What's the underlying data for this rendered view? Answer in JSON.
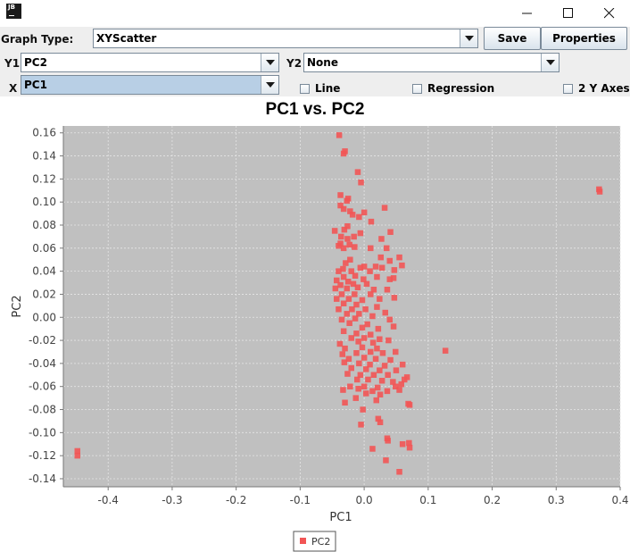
{
  "window": {
    "icon_text": "JB",
    "minimize_label": "minimize",
    "maximize_label": "maximize",
    "close_label": "close"
  },
  "controls": {
    "graph_type_label": "Graph Type:",
    "graph_type_value": "XYScatter",
    "save_label": "Save",
    "properties_label": "Properties",
    "y1_label": "Y1",
    "y1_value": "PC2",
    "y2_label": "Y2",
    "y2_value": "None",
    "x_label": "X",
    "x_value": "PC1",
    "line_label": "Line",
    "regression_label": "Regression",
    "two_y_axes_label": "2 Y Axes",
    "line_checked": false,
    "regression_checked": false,
    "two_y_axes_checked": false
  },
  "colors": {
    "plot_background": "#c0c0c0",
    "marker": "#f25555",
    "grid": "#e6e6e6"
  },
  "chart_data": {
    "type": "scatter",
    "title": "PC1 vs. PC2",
    "xlabel": "PC1",
    "ylabel": "PC2",
    "xlim": [
      -0.47,
      0.4
    ],
    "ylim": [
      -0.147,
      0.166
    ],
    "x_ticks": [
      -0.4,
      -0.3,
      -0.2,
      -0.1,
      0.0,
      0.1,
      0.2,
      0.3,
      0.4
    ],
    "x_tick_labels": [
      "-0.4",
      "-0.3",
      "-0.2",
      "-0.1",
      "0.0",
      "0.1",
      "0.2",
      "0.3",
      "0.4"
    ],
    "y_ticks": [
      0.16,
      0.14,
      0.12,
      0.1,
      0.08,
      0.06,
      0.04,
      0.02,
      0.0,
      -0.02,
      -0.04,
      -0.06,
      -0.08,
      -0.1,
      -0.12,
      -0.14
    ],
    "y_tick_labels": [
      "0.16",
      "0.14",
      "0.12",
      "0.10",
      "0.08",
      "0.06",
      "0.04",
      "0.02",
      "0.00",
      "-0.02",
      "-0.04",
      "-0.06",
      "-0.08",
      "-0.10",
      "-0.12",
      "-0.14"
    ],
    "grid": true,
    "legend_position": "bottom-center",
    "series": [
      {
        "name": "PC2",
        "color": "#f25555",
        "points": [
          [
            -0.448,
            -0.116
          ],
          [
            -0.448,
            -0.12
          ],
          [
            0.367,
            0.111
          ],
          [
            0.368,
            0.109
          ],
          [
            0.127,
            -0.029
          ],
          [
            -0.039,
            0.158
          ],
          [
            -0.03,
            0.144
          ],
          [
            -0.032,
            0.142
          ],
          [
            -0.01,
            0.126
          ],
          [
            -0.005,
            0.117
          ],
          [
            -0.037,
            0.106
          ],
          [
            -0.025,
            0.103
          ],
          [
            -0.027,
            0.101
          ],
          [
            -0.037,
            0.097
          ],
          [
            -0.032,
            0.094
          ],
          [
            -0.022,
            0.092
          ],
          [
            -0.018,
            0.089
          ],
          [
            -0.008,
            0.087
          ],
          [
            0.0,
            0.091
          ],
          [
            0.032,
            0.095
          ],
          [
            0.011,
            0.083
          ],
          [
            -0.026,
            0.079
          ],
          [
            -0.031,
            0.076
          ],
          [
            -0.046,
            0.075
          ],
          [
            -0.016,
            0.07
          ],
          [
            -0.006,
            0.073
          ],
          [
            0.027,
            0.068
          ],
          [
            -0.036,
            0.07
          ],
          [
            -0.026,
            0.068
          ],
          [
            0.041,
            0.074
          ],
          [
            -0.037,
            0.064
          ],
          [
            -0.023,
            0.063
          ],
          [
            -0.04,
            0.062
          ],
          [
            -0.015,
            0.061
          ],
          [
            -0.032,
            0.06
          ],
          [
            0.01,
            0.06
          ],
          [
            0.035,
            0.06
          ],
          [
            0.055,
            0.052
          ],
          [
            0.026,
            0.052
          ],
          [
            0.04,
            0.049
          ],
          [
            -0.022,
            0.05
          ],
          [
            -0.029,
            0.047
          ],
          [
            0.059,
            0.045
          ],
          [
            -0.033,
            0.042
          ],
          [
            -0.006,
            0.043
          ],
          [
            0.0,
            0.044
          ],
          [
            0.018,
            0.044
          ],
          [
            0.028,
            0.043
          ],
          [
            -0.04,
            0.04
          ],
          [
            -0.02,
            0.04
          ],
          [
            0.009,
            0.04
          ],
          [
            0.047,
            0.041
          ],
          [
            -0.032,
            0.035
          ],
          [
            -0.014,
            0.036
          ],
          [
            0.02,
            0.035
          ],
          [
            0.046,
            0.034
          ],
          [
            -0.043,
            0.032
          ],
          [
            -0.025,
            0.031
          ],
          [
            -0.001,
            0.033
          ],
          [
            0.04,
            0.033
          ],
          [
            -0.037,
            0.028
          ],
          [
            -0.017,
            0.029
          ],
          [
            0.004,
            0.029
          ],
          [
            -0.045,
            0.025
          ],
          [
            -0.027,
            0.025
          ],
          [
            -0.01,
            0.026
          ],
          [
            0.015,
            0.024
          ],
          [
            0.036,
            0.024
          ],
          [
            -0.035,
            0.02
          ],
          [
            -0.015,
            0.02
          ],
          [
            0.01,
            0.02
          ],
          [
            0.024,
            0.016
          ],
          [
            -0.043,
            0.016
          ],
          [
            -0.024,
            0.016
          ],
          [
            -0.003,
            0.015
          ],
          [
            0.047,
            0.017
          ],
          [
            -0.032,
            0.012
          ],
          [
            -0.012,
            0.011
          ],
          [
            0.02,
            0.009
          ],
          [
            -0.04,
            0.007
          ],
          [
            -0.019,
            0.007
          ],
          [
            0.002,
            0.007
          ],
          [
            0.033,
            0.004
          ],
          [
            -0.027,
            0.003
          ],
          [
            -0.008,
            0.003
          ],
          [
            0.013,
            0.001
          ],
          [
            -0.035,
            -0.002
          ],
          [
            -0.014,
            -0.001
          ],
          [
            0.04,
            -0.002
          ],
          [
            -0.023,
            -0.005
          ],
          [
            0.005,
            -0.006
          ],
          [
            -0.003,
            -0.009
          ],
          [
            0.022,
            -0.01
          ],
          [
            -0.032,
            -0.012
          ],
          [
            -0.012,
            -0.014
          ],
          [
            0.01,
            -0.015
          ],
          [
            0.046,
            -0.008
          ],
          [
            -0.02,
            -0.018
          ],
          [
            0.0,
            -0.018
          ],
          [
            0.024,
            -0.019
          ],
          [
            -0.038,
            -0.023
          ],
          [
            -0.009,
            -0.021
          ],
          [
            0.014,
            -0.022
          ],
          [
            0.038,
            -0.02
          ],
          [
            -0.03,
            -0.027
          ],
          [
            -0.003,
            -0.026
          ],
          [
            0.02,
            -0.027
          ],
          [
            -0.034,
            -0.032
          ],
          [
            -0.012,
            -0.031
          ],
          [
            0.01,
            -0.03
          ],
          [
            0.029,
            -0.031
          ],
          [
            0.049,
            -0.03
          ],
          [
            -0.024,
            -0.036
          ],
          [
            0.0,
            -0.035
          ],
          [
            0.018,
            -0.036
          ],
          [
            0.041,
            -0.037
          ],
          [
            -0.031,
            -0.039
          ],
          [
            -0.008,
            -0.04
          ],
          [
            0.009,
            -0.041
          ],
          [
            0.032,
            -0.042
          ],
          [
            0.06,
            -0.041
          ],
          [
            -0.02,
            -0.044
          ],
          [
            0.003,
            -0.045
          ],
          [
            0.024,
            -0.046
          ],
          [
            0.05,
            -0.046
          ],
          [
            -0.026,
            -0.049
          ],
          [
            -0.006,
            -0.05
          ],
          [
            0.015,
            -0.05
          ],
          [
            0.037,
            -0.05
          ],
          [
            0.067,
            -0.052
          ],
          [
            -0.011,
            -0.054
          ],
          [
            0.006,
            -0.054
          ],
          [
            0.028,
            -0.055
          ],
          [
            0.063,
            -0.054
          ],
          [
            0.045,
            -0.056
          ],
          [
            -0.022,
            -0.06
          ],
          [
            0.0,
            -0.06
          ],
          [
            0.021,
            -0.061
          ],
          [
            0.058,
            -0.058
          ],
          [
            -0.033,
            -0.063
          ],
          [
            -0.009,
            -0.062
          ],
          [
            0.013,
            -0.064
          ],
          [
            0.036,
            -0.064
          ],
          [
            0.049,
            -0.06
          ],
          [
            0.055,
            -0.063
          ],
          [
            0.003,
            -0.066
          ],
          [
            0.025,
            -0.067
          ],
          [
            0.069,
            -0.075
          ],
          [
            0.071,
            -0.076
          ],
          [
            -0.013,
            -0.07
          ],
          [
            0.019,
            -0.072
          ],
          [
            -0.03,
            -0.074
          ],
          [
            -0.002,
            -0.08
          ],
          [
            0.022,
            -0.088
          ],
          [
            0.025,
            -0.091
          ],
          [
            -0.005,
            -0.093
          ],
          [
            0.036,
            -0.105
          ],
          [
            0.037,
            -0.107
          ],
          [
            0.013,
            -0.114
          ],
          [
            0.06,
            -0.11
          ],
          [
            0.07,
            -0.109
          ],
          [
            0.071,
            -0.113
          ],
          [
            0.034,
            -0.124
          ],
          [
            0.055,
            -0.134
          ]
        ]
      }
    ]
  }
}
